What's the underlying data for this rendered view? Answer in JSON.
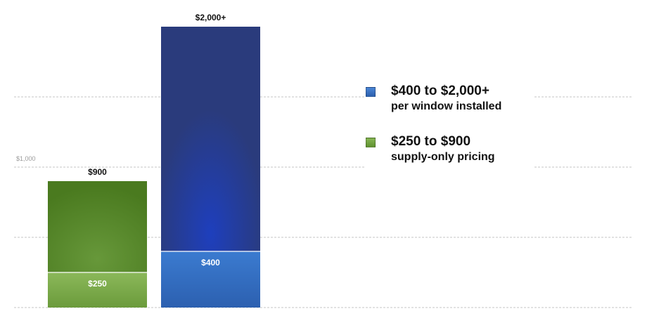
{
  "chart_data": {
    "type": "bar",
    "stacked": true,
    "categories": [
      "supply-only",
      "installed"
    ],
    "ylim": [
      0,
      2000
    ],
    "y_gridlines": [
      0,
      500,
      1000,
      1500
    ],
    "y_tick_labels": [
      {
        "value": 1000,
        "label": "$1,000"
      }
    ],
    "grid": true,
    "legend_position": "right",
    "bars": [
      {
        "category": "supply-only",
        "low": 250,
        "high": 900,
        "low_label": "$250",
        "high_label": "$900",
        "colors": {
          "low_top": "#7fae4c",
          "low_bottom": "#6a9a38",
          "high_top": "#4c7a1f",
          "high_mid": "#5c8a2a"
        }
      },
      {
        "category": "installed",
        "low": 400,
        "high": 2000,
        "low_label": "$400",
        "high_label": "$2,000+",
        "colors": {
          "low_top": "#3a78cc",
          "low_bottom": "#2b5fae",
          "high_top": "#2a3f80",
          "high_mid": "#2d3a7a",
          "high_glow": "#1f3fb8"
        }
      }
    ]
  },
  "legend": {
    "items": [
      {
        "line1": "$400 to $2,000+",
        "line2": "per window installed",
        "color": "#3a6fc4"
      },
      {
        "line1": "$250 to $900",
        "line2": "supply-only pricing",
        "color": "#6ea33a"
      }
    ]
  }
}
